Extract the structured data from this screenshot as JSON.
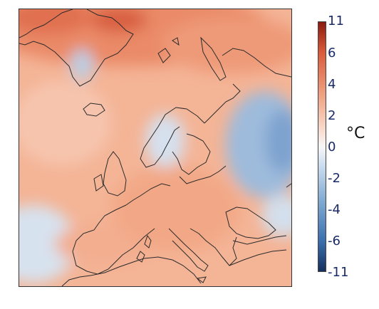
{
  "colorbar": {
    "unit": "°C",
    "labels": [
      "11",
      "6",
      "4",
      "2",
      "0",
      "-2",
      "-4",
      "-6",
      "-11"
    ],
    "colors": {
      "max": "#8b1a0e",
      "warm_strong": "#d95a3a",
      "warm_mid": "#f0a585",
      "warm_light": "#f8d6c6",
      "neutral": "#f7f7f7",
      "cool_light": "#c9dcee",
      "cool_mid": "#7fa9d2",
      "cool_strong": "#3a6fae",
      "min": "#14305e"
    }
  },
  "map": {
    "coastline_color": "#2b2b2b"
  }
}
